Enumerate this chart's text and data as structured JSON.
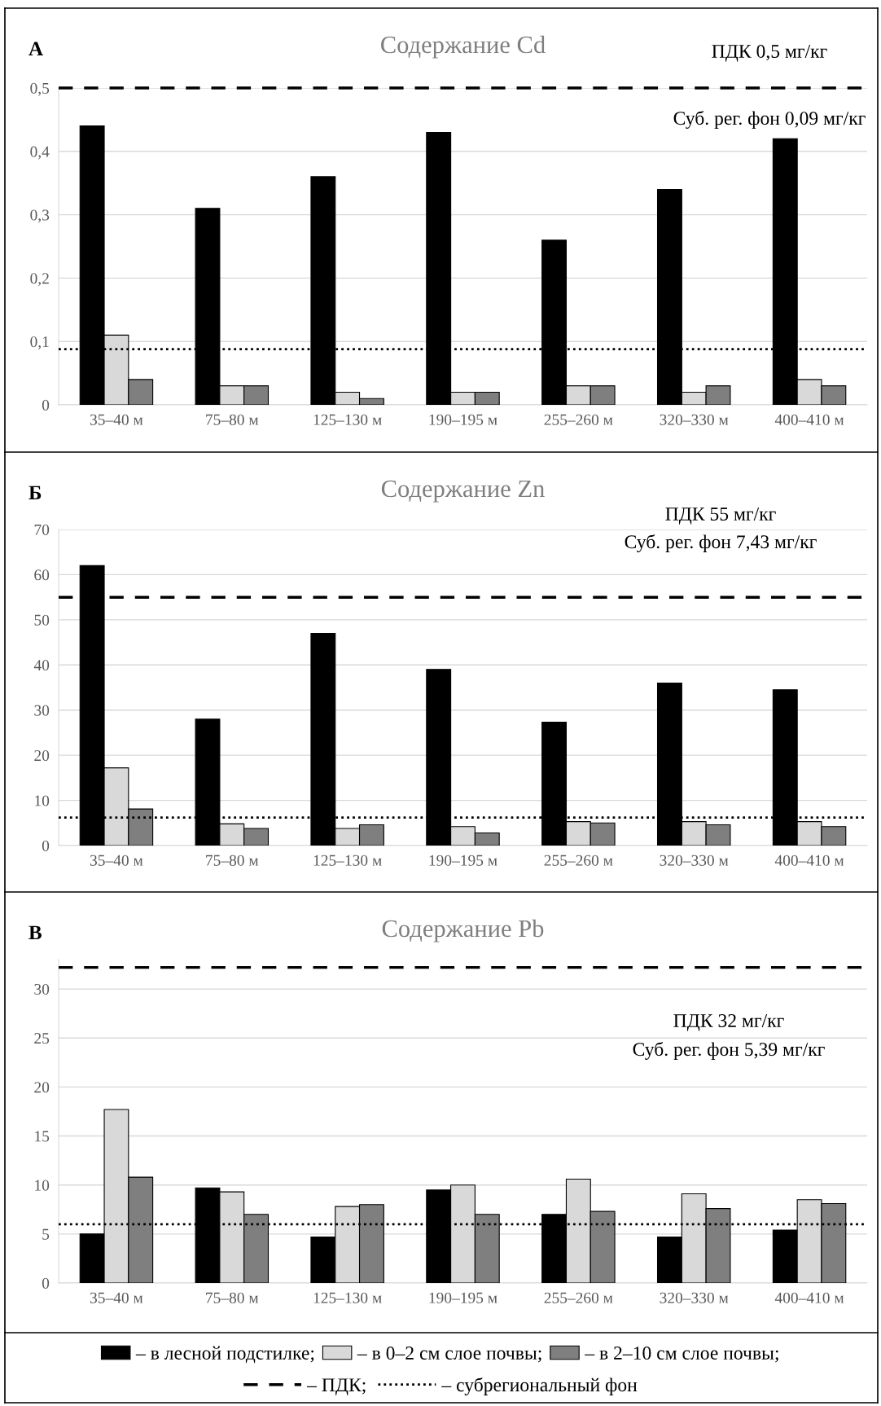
{
  "chart_data": [
    {
      "type": "bar",
      "title": "Содержание Cd",
      "categories": [
        "35–40 м",
        "75–80 м",
        "125–130 м",
        "190–195 м",
        "255–260 м",
        "320–330 м",
        "400–410 м"
      ],
      "series": [
        {
          "name": "– в лесной подстилке;",
          "color": "#000000",
          "values": [
            0.44,
            0.31,
            0.36,
            0.43,
            0.26,
            0.34,
            0.42
          ]
        },
        {
          "name": "– в 0–2 см слое почвы;",
          "color": "#d9d9d9",
          "values": [
            0.11,
            0.03,
            0.02,
            0.02,
            0.03,
            0.02,
            0.04
          ]
        },
        {
          "name": "– в 2–10 см слое почвы;",
          "color": "#7f7f7f",
          "values": [
            0.04,
            0.03,
            0.01,
            0.02,
            0.03,
            0.03,
            0.03
          ]
        }
      ],
      "ylim": [
        0,
        0.5
      ],
      "yticks": [
        {
          "value": 0,
          "label": "0"
        },
        {
          "value": 0.1,
          "label": "0,1"
        },
        {
          "value": 0.2,
          "label": "0,2"
        },
        {
          "value": 0.3,
          "label": "0,3"
        },
        {
          "value": 0.4,
          "label": "0,4"
        },
        {
          "value": 0.5,
          "label": "0,5"
        }
      ],
      "grid": "y",
      "legend": "bottom",
      "ref_lines": [
        {
          "axis": "y",
          "value": 0.5,
          "line_style": "dashed",
          "color": "#000000",
          "label": "– ПДК;"
        },
        {
          "axis": "y",
          "value": 0.088,
          "line_style": "dotted",
          "color": "#000000",
          "label": "– субрегиональный фон"
        }
      ],
      "annotations": [
        "А",
        "ПДК 0,5 мг/кг",
        "Суб. рег. фон 0,09 мг/кг"
      ]
    },
    {
      "type": "bar",
      "title": "Содержание Zn",
      "categories": [
        "35–40 м",
        "75–80 м",
        "125–130 м",
        "190–195 м",
        "255–260 м",
        "320–330 м",
        "400–410 м"
      ],
      "series": [
        {
          "color": "#000000",
          "values": [
            62,
            28,
            47,
            39,
            27.3,
            36,
            34.5
          ]
        },
        {
          "color": "#d9d9d9",
          "values": [
            17.2,
            4.8,
            3.8,
            4.2,
            5.3,
            5.3,
            5.3
          ]
        },
        {
          "color": "#7f7f7f",
          "values": [
            8.1,
            3.8,
            4.6,
            2.8,
            5,
            4.6,
            4.2
          ]
        }
      ],
      "ylim": [
        0,
        70
      ],
      "yticks": [
        0,
        10,
        20,
        30,
        40,
        50,
        60,
        70
      ],
      "grid": "y",
      "ref_lines": [
        {
          "axis": "y",
          "value": 55,
          "line_style": "dashed",
          "color": "#000000"
        },
        {
          "axis": "y",
          "value": 6.2,
          "line_style": "dotted",
          "color": "#000000"
        }
      ],
      "annotations": [
        "Б",
        "ПДК 55 мг/кг",
        "Суб. рег. фон 7,43 мг/кг"
      ]
    },
    {
      "type": "bar",
      "title": "Содержание Pb",
      "categories": [
        "35–40 м",
        "75–80 м",
        "125–130 м",
        "190–195 м",
        "255–260 м",
        "320–330 м",
        "400–410 м"
      ],
      "series": [
        {
          "color": "#000000",
          "values": [
            5,
            9.7,
            4.7,
            9.5,
            7,
            4.7,
            5.4
          ]
        },
        {
          "color": "#d9d9d9",
          "values": [
            17.7,
            9.3,
            7.8,
            10,
            10.6,
            9.1,
            8.5
          ]
        },
        {
          "color": "#7f7f7f",
          "values": [
            10.8,
            7,
            8,
            7,
            7.3,
            7.6,
            8.1
          ]
        }
      ],
      "ylim": [
        0,
        33
      ],
      "yticks": [
        0,
        5,
        10,
        15,
        20,
        25,
        30
      ],
      "grid": "y",
      "ref_lines": [
        {
          "axis": "y",
          "value": 32.2,
          "line_style": "dashed",
          "color": "#000000"
        },
        {
          "axis": "y",
          "value": 6,
          "line_style": "dotted",
          "color": "#000000"
        }
      ],
      "annotations": [
        "В",
        "ПДК 32 мг/кг",
        "Суб. рег. фон 5,39 мг/кг"
      ]
    }
  ]
}
